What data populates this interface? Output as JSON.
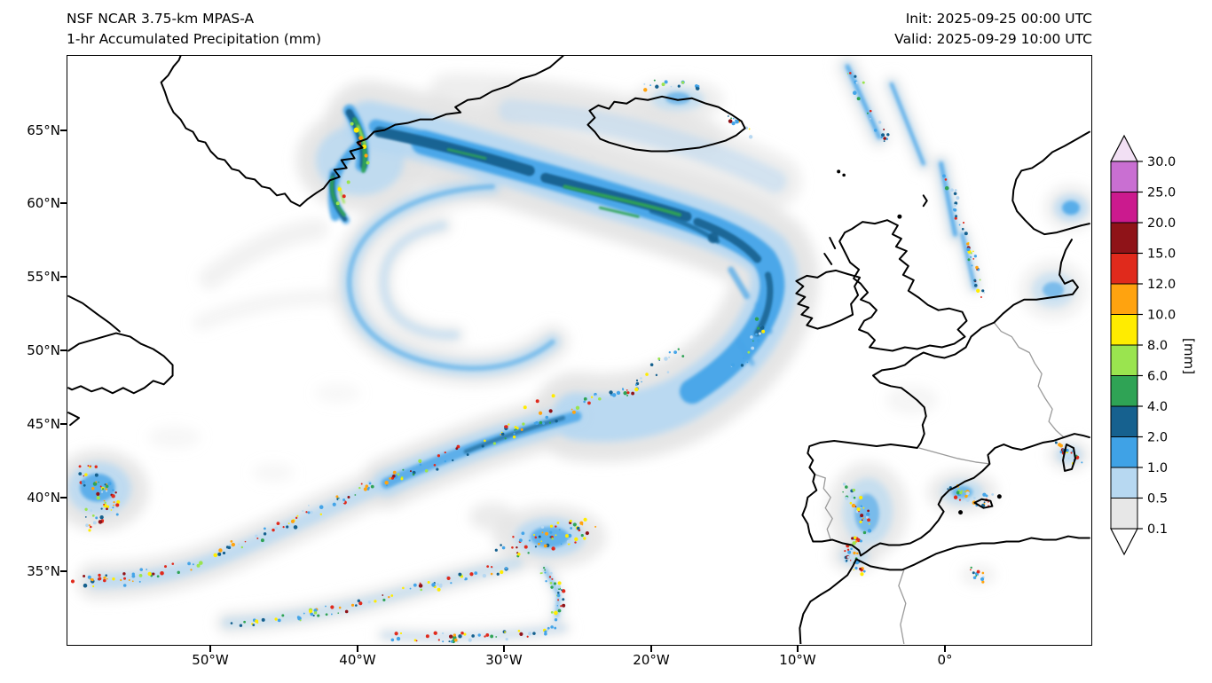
{
  "header": {
    "title_line1": "NSF NCAR 3.75-km MPAS-A",
    "title_line2": "1-hr Accumulated Precipitation (mm)",
    "init_label": "Init: 2025-09-25 00:00 UTC",
    "valid_label": "Valid: 2025-09-29 10:00 UTC"
  },
  "map": {
    "lat_ticks": [
      "65°N",
      "60°N",
      "55°N",
      "50°N",
      "45°N",
      "40°N",
      "35°N"
    ],
    "lon_ticks": [
      "50°W",
      "40°W",
      "30°W",
      "20°W",
      "10°W",
      "0°"
    ]
  },
  "colorbar": {
    "unit": "[mm]",
    "ticks": [
      "30.0",
      "25.0",
      "20.0",
      "15.0",
      "12.0",
      "10.0",
      "8.0",
      "6.0",
      "4.0",
      "2.0",
      "1.0",
      "0.5",
      "0.1"
    ],
    "over_color": "#f2e0f4",
    "under_color": "#ffffff",
    "segments": [
      {
        "label": "25.0-30.0",
        "color": "#c96fd2"
      },
      {
        "label": "20.0-25.0",
        "color": "#cb1a8e"
      },
      {
        "label": "15.0-20.0",
        "color": "#8f1318"
      },
      {
        "label": "12.0-15.0",
        "color": "#e02a1c"
      },
      {
        "label": "10.0-12.0",
        "color": "#ffa30f"
      },
      {
        "label": "8.0-10.0",
        "color": "#ffec00"
      },
      {
        "label": "6.0-8.0",
        "color": "#9ae44f"
      },
      {
        "label": "4.0-6.0",
        "color": "#2fa355"
      },
      {
        "label": "2.0-4.0",
        "color": "#16618f"
      },
      {
        "label": "1.0-2.0",
        "color": "#3fa2e6"
      },
      {
        "label": "0.5-1.0",
        "color": "#b7d8f1"
      },
      {
        "label": "0.1-0.5",
        "color": "#e7e7e7"
      }
    ]
  },
  "chart_data": {
    "type": "heatmap",
    "title": "1-hr Accumulated Precipitation (mm)",
    "model": "NSF NCAR 3.75-km MPAS-A",
    "init": "2025-09-25 00:00 UTC",
    "valid": "2025-09-29 10:00 UTC",
    "legend_levels_mm": [
      0.1,
      0.5,
      1,
      2,
      4,
      6,
      8,
      10,
      12,
      15,
      20,
      25,
      30
    ],
    "legend_position": "right",
    "axis": {
      "lon_tick_labels": [
        "50°W",
        "40°W",
        "30°W",
        "20°W",
        "10°W",
        "0°"
      ],
      "lat_tick_labels": [
        "65°N",
        "60°N",
        "55°N",
        "50°N",
        "45°N",
        "40°N",
        "35°N"
      ],
      "lon_range_deg": [
        -60,
        10
      ],
      "lat_range_deg": [
        30,
        70
      ]
    }
  }
}
